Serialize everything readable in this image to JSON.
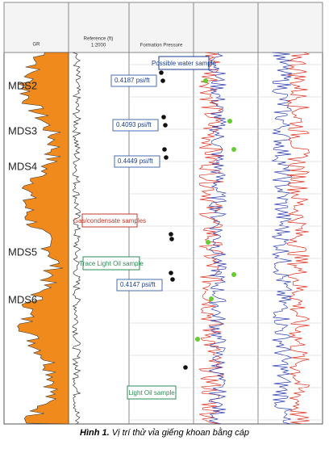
{
  "figure": {
    "tracks": {
      "gr": "GR",
      "reference": {
        "title": "Reference (ft)",
        "scale": "1:2000"
      },
      "pressure": "Formation Pressure"
    },
    "zones": [
      "MDS2",
      "MDS3",
      "MDS4",
      "MDS5",
      "MDS6"
    ],
    "gradients": [
      "0.4187 psi/ft",
      "0.4093 psi/ft",
      "0.4449 psi/ft",
      "0.4147 psi/ft"
    ],
    "notes": {
      "water": "Possible water sample",
      "gas": "Gas/condensate samples",
      "trace": "Trace Light Oil sample",
      "light": "Light Oil sample"
    }
  },
  "caption": {
    "label": "Hình 1.",
    "text": "Vị trí thử vỉa giếng khoan bằng cáp"
  }
}
